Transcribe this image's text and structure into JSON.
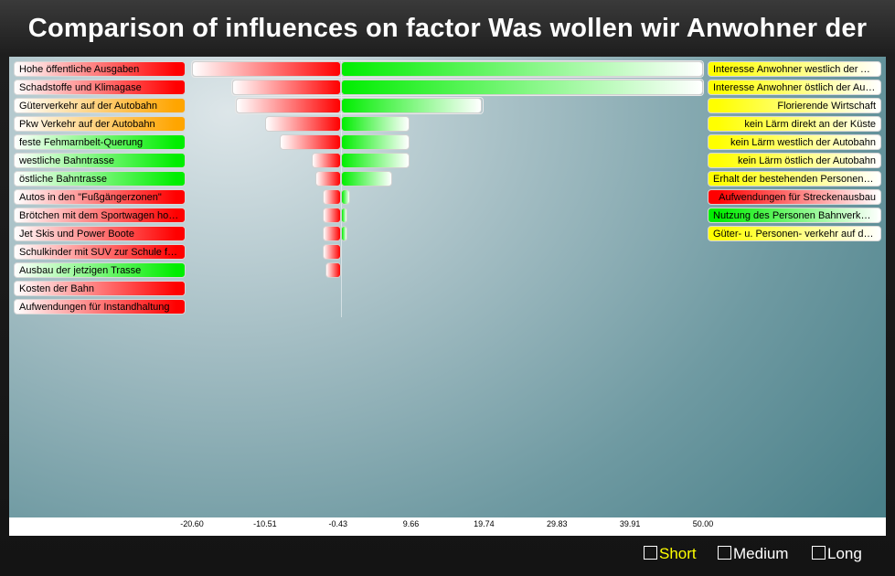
{
  "title": "Comparison of influences on factor Was wollen wir Anwohner der",
  "colors": {
    "red": "#ff0000",
    "green": "#00ee00",
    "orange": "#ffa500",
    "yellow": "#ffff00",
    "white": "#ffffff"
  },
  "chart_data": {
    "type": "bar",
    "orientation": "horizontal",
    "xlim": [
      -20.6,
      50.0
    ],
    "x_ticks": [
      "-20.60",
      "-10.51",
      "-0.43",
      "9.66",
      "19.74",
      "29.83",
      "39.91",
      "50.00"
    ],
    "negative_labels": [
      {
        "label": "Hohe öffentliche Ausgaben",
        "color": "#ff0000"
      },
      {
        "label": "Schadstoffe und Klimagase",
        "color": "#ff0000"
      },
      {
        "label": "Güterverkehr auf der Autobahn",
        "color": "#ffa500"
      },
      {
        "label": "Pkw Verkehr auf der Autobahn",
        "color": "#ffa500"
      },
      {
        "label": "feste Fehmarnbelt-Querung",
        "color": "#00ee00"
      },
      {
        "label": "westliche Bahntrasse",
        "color": "#00ee00"
      },
      {
        "label": "östliche Bahntrasse",
        "color": "#00ee00"
      },
      {
        "label": "Autos in den \"Fußgängerzonen\"",
        "color": "#ff0000"
      },
      {
        "label": "Brötchen mit dem Sportwagen holen",
        "color": "#ff0000"
      },
      {
        "label": "Jet Skis und Power Boote",
        "color": "#ff0000"
      },
      {
        "label": "Schulkinder mit SUV zur Schule fahren",
        "color": "#ff0000"
      },
      {
        "label": "Ausbau der jetzigen Trasse",
        "color": "#00ee00"
      },
      {
        "label": "Kosten der Bahn",
        "color": "#ff0000"
      },
      {
        "label": "Aufwendungen für Instandhaltung",
        "color": "#ff0000"
      }
    ],
    "positive_labels": [
      {
        "label": "Interesse Anwohner westlich der Autobahn",
        "color": "#ffff00"
      },
      {
        "label": "Interesse Anwohner östlich der Autobahn",
        "color": "#ffff00"
      },
      {
        "label": "Florierende Wirtschaft",
        "color": "#ffff00"
      },
      {
        "label": "kein Lärm direkt an der Küste",
        "color": "#ffff00"
      },
      {
        "label": "kein Lärm westlich der Autobahn",
        "color": "#ffff00"
      },
      {
        "label": "kein Lärm östlich der Autobahn",
        "color": "#ffff00"
      },
      {
        "label": "Erhalt der bestehenden Personenverkehre",
        "color": "#ffff00"
      },
      {
        "label": "Aufwendungen für Streckenausbau",
        "color": "#ff0000"
      },
      {
        "label": "Nutzung des Personen Bahnverkehrs",
        "color": "#00ee00"
      },
      {
        "label": "Güter- u. Personen- verkehr auf der Bahn",
        "color": "#ffff00"
      }
    ],
    "rows": [
      {
        "neg": -20.6,
        "pos": 50.0,
        "outline": true
      },
      {
        "neg": -15.0,
        "pos": 50.0,
        "outline": true
      },
      {
        "neg": -14.5,
        "pos": 19.5,
        "outline": true
      },
      {
        "neg": -10.5,
        "pos": 9.5
      },
      {
        "neg": -8.5,
        "pos": 9.5
      },
      {
        "neg": -4.0,
        "pos": 9.5
      },
      {
        "neg": -3.5,
        "pos": 7.0
      },
      {
        "neg": -2.5,
        "pos": 1.2
      },
      {
        "neg": -2.5,
        "pos": 0.9
      },
      {
        "neg": -2.5,
        "pos": 0.9
      },
      {
        "neg": -2.5,
        "pos": 0.0
      },
      {
        "neg": -2.2,
        "pos": 0.0
      },
      {
        "neg": 0.0,
        "pos": 0.0
      },
      {
        "neg": 0.0,
        "pos": 0.0
      }
    ]
  },
  "legend": [
    {
      "label": "Short",
      "color": "#ffff00"
    },
    {
      "label": "Medium",
      "color": "#ffffff"
    },
    {
      "label": "Long",
      "color": "#ffffff"
    }
  ]
}
